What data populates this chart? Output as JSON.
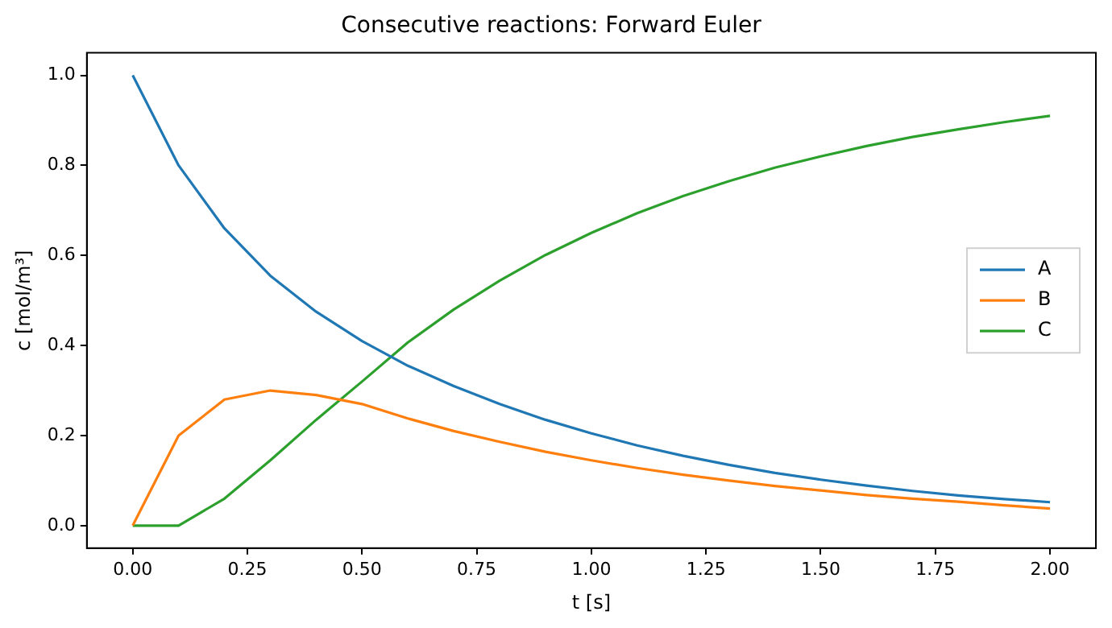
{
  "chart_data": {
    "type": "line",
    "title": "Consecutive reactions: Forward Euler",
    "xlabel": "t [s]",
    "ylabel": "c [mol/m³]",
    "x": [
      0,
      0.1,
      0.2,
      0.3,
      0.4,
      0.5,
      0.6,
      0.7,
      0.8,
      0.9,
      1.0,
      1.1,
      1.2,
      1.3,
      1.4,
      1.5,
      1.6,
      1.7,
      1.8,
      1.9,
      2.0
    ],
    "series": [
      {
        "name": "A",
        "color": "#1f77b4",
        "values": [
          1.0,
          0.8,
          0.66,
          0.555,
          0.475,
          0.41,
          0.355,
          0.31,
          0.27,
          0.235,
          0.205,
          0.178,
          0.155,
          0.135,
          0.117,
          0.102,
          0.089,
          0.077,
          0.067,
          0.059,
          0.052
        ]
      },
      {
        "name": "B",
        "color": "#ff7f0e",
        "values": [
          0,
          0.2,
          0.28,
          0.3,
          0.29,
          0.27,
          0.238,
          0.21,
          0.186,
          0.164,
          0.145,
          0.128,
          0.113,
          0.1,
          0.088,
          0.078,
          0.068,
          0.06,
          0.053,
          0.045,
          0.038
        ]
      },
      {
        "name": "C",
        "color": "#2ca02c",
        "values": [
          0,
          0,
          0.06,
          0.145,
          0.235,
          0.32,
          0.407,
          0.48,
          0.544,
          0.601,
          0.65,
          0.694,
          0.732,
          0.765,
          0.795,
          0.82,
          0.843,
          0.863,
          0.88,
          0.896,
          0.91
        ]
      }
    ],
    "xlim": [
      -0.1,
      2.1
    ],
    "ylim": [
      -0.05,
      1.05
    ],
    "xticks": [
      {
        "value": 0,
        "label": "0.00"
      },
      {
        "value": 0.25,
        "label": "0.25"
      },
      {
        "value": 0.5,
        "label": "0.50"
      },
      {
        "value": 0.75,
        "label": "0.75"
      },
      {
        "value": 1,
        "label": "1.00"
      },
      {
        "value": 1.25,
        "label": "1.25"
      },
      {
        "value": 1.5,
        "label": "1.50"
      },
      {
        "value": 1.75,
        "label": "1.75"
      },
      {
        "value": 2,
        "label": "2.00"
      }
    ],
    "yticks": [
      {
        "value": 0,
        "label": "0.0"
      },
      {
        "value": 0.2,
        "label": "0.2"
      },
      {
        "value": 0.4,
        "label": "0.4"
      },
      {
        "value": 0.6,
        "label": "0.6"
      },
      {
        "value": 0.8,
        "label": "0.8"
      },
      {
        "value": 1,
        "label": "1.0"
      }
    ],
    "grid": false,
    "legend": "center right",
    "marker": "none",
    "line_style": "solid"
  }
}
